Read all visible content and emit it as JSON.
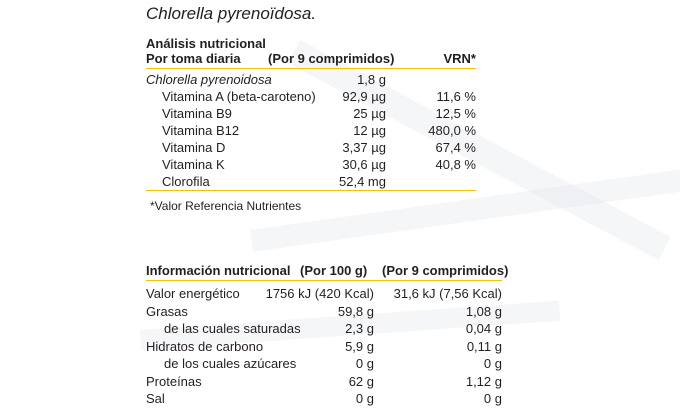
{
  "title": "Chlorella pyrenoïdosa.",
  "analysis": {
    "heading": "Análisis nutricional",
    "col_label": "Por toma diaria",
    "col_amount": "(Por 9 comprimidos)",
    "col_vrn": "VRN*",
    "rows": [
      {
        "name": "Chlorella pyrenoidosa",
        "amount": "1,8 g",
        "vrn": ""
      },
      {
        "name": "Vitamina A (beta-caroteno)",
        "amount": "92,9 µg",
        "vrn": "11,6 %"
      },
      {
        "name": "Vitamina B9",
        "amount": "25 µg",
        "vrn": "12,5 %"
      },
      {
        "name": "Vitamina B12",
        "amount": "12 µg",
        "vrn": "480,0 %"
      },
      {
        "name": "Vitamina D",
        "amount": "3,37 µg",
        "vrn": "67,4 %"
      },
      {
        "name": "Vitamina K",
        "amount": "30,6 µg",
        "vrn": "40,8 %"
      },
      {
        "name": "Clorofila",
        "amount": "52,4 mg",
        "vrn": ""
      }
    ],
    "footnote": "*Valor Referencia Nutrientes"
  },
  "nutrition": {
    "heading": "Información nutricional",
    "col_100g": "(Por 100 g)",
    "col_9": "(Por 9 comprimidos)",
    "rows": [
      {
        "name": "Valor energético",
        "per100": "1756 kJ (420 Kcal)",
        "per9": "31,6 kJ (7,56 Kcal)"
      },
      {
        "name": "Grasas",
        "per100": "59,8 g",
        "per9": "1,08 g"
      },
      {
        "name": "de las cuales saturadas",
        "per100": "2,3 g",
        "per9": "0,04 g"
      },
      {
        "name": "Hidratos de carbono",
        "per100": "5,9 g",
        "per9": "0,11 g"
      },
      {
        "name": "de los cuales azúcares",
        "per100": "0 g",
        "per9": "0 g"
      },
      {
        "name": "Proteínas",
        "per100": "62 g",
        "per9": "1,12 g"
      },
      {
        "name": "Sal",
        "per100": "0 g",
        "per9": "0 g"
      }
    ]
  },
  "colors": {
    "rule": "#f2c300",
    "text": "#231f20"
  }
}
